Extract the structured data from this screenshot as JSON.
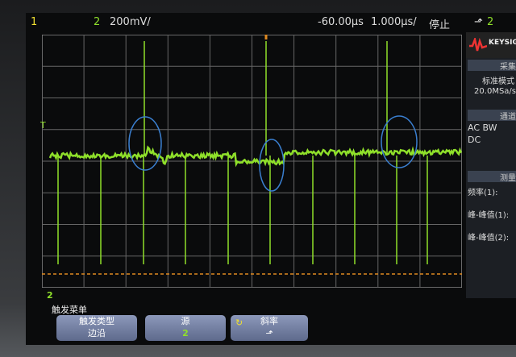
{
  "topbar": {
    "ch1": "1",
    "ch2": "2",
    "volts_div": "200mV/",
    "delay": "-60.00µs",
    "time_div": "1.000µs/",
    "run_state": "停止",
    "trigger_icon": "rising-edge-icon",
    "trigger_source": "2"
  },
  "side": {
    "logo": "KEYSIGHT TECHNOLOGIES",
    "acquire_header": "采集",
    "acquire_mode": "标准模式",
    "sample_rate": "20.0MSa/s",
    "channels_header": "通道",
    "ch1_coupling": "AC BW",
    "ch2_coupling": "DC",
    "measure_header": "测量",
    "meas1": "频率(1):",
    "meas2": "峰-峰值(1):",
    "meas3": "峰-峰值(2):"
  },
  "markers": {
    "ground": "2",
    "trigger_level": "T"
  },
  "menu": {
    "title": "触发菜单",
    "buttons": [
      {
        "label": "触发类型",
        "value": "边沿"
      },
      {
        "label": "源",
        "value": "2"
      },
      {
        "label": "斜率",
        "value": "rising-edge"
      }
    ]
  },
  "colors": {
    "ch1": "#f0e030",
    "ch2": "#8fe02a",
    "annotation": "#3a7fd0",
    "trigger_line": "#e08a20"
  }
}
